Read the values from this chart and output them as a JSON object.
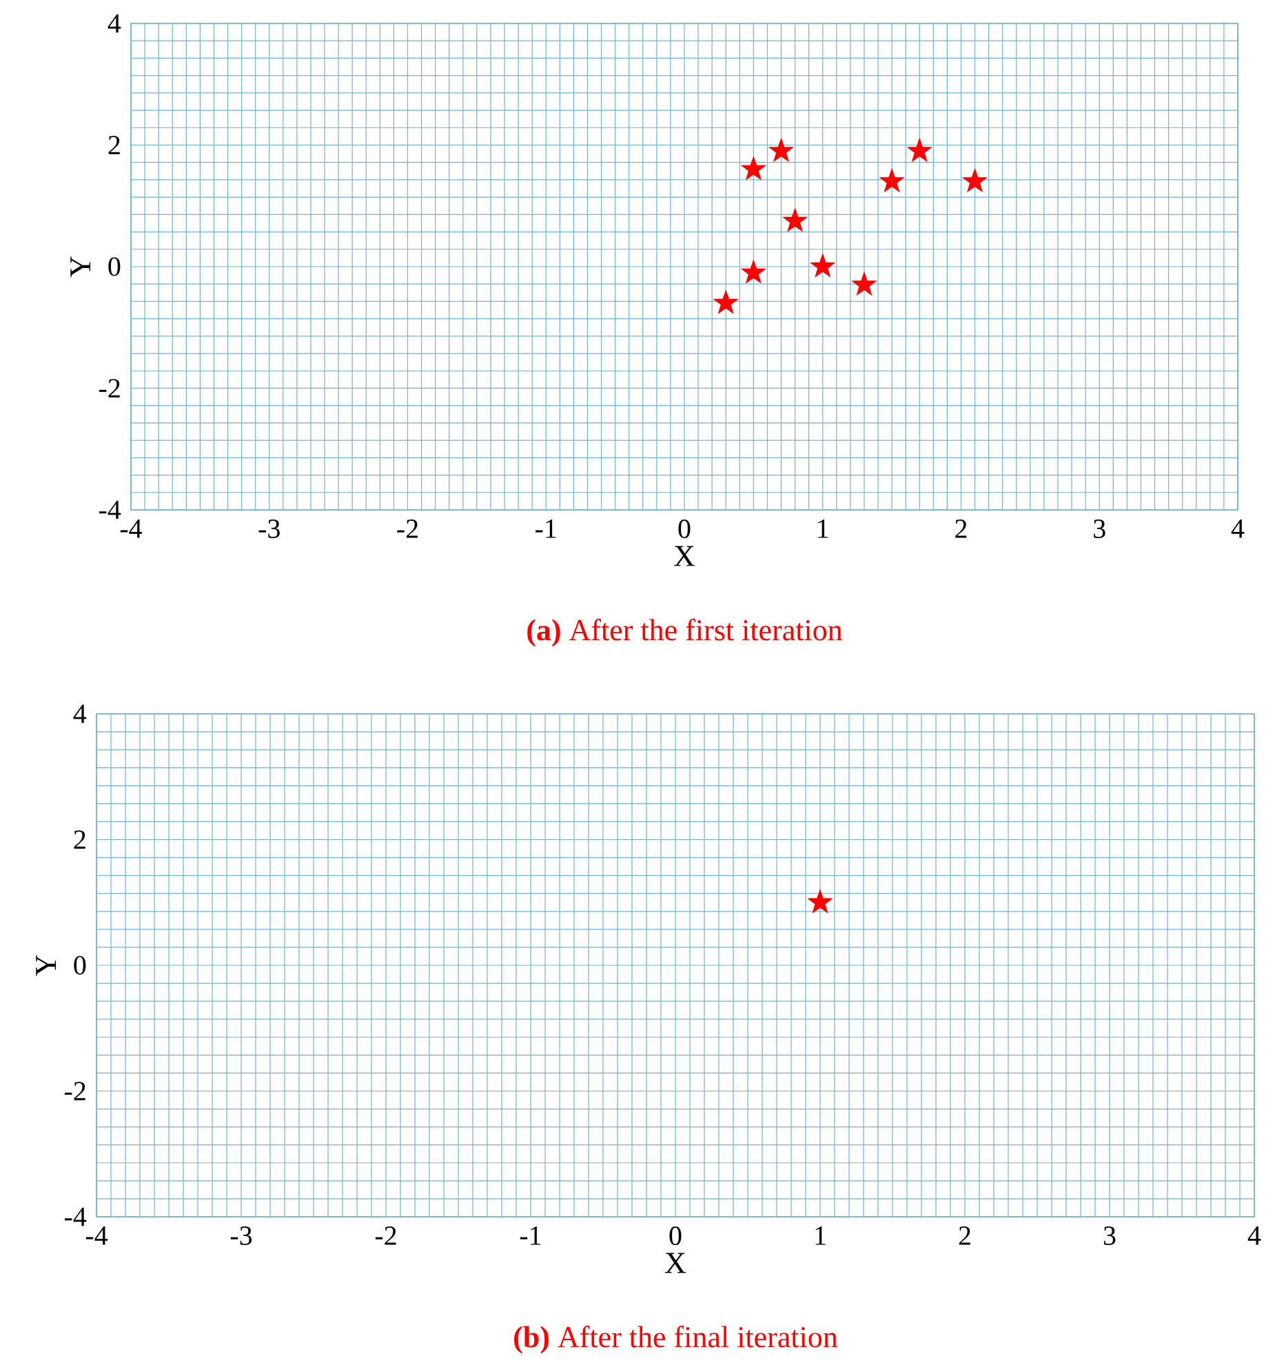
{
  "chart_data": [
    {
      "type": "scatter",
      "title": "**(a)** After the first iteration",
      "xlabel": "X",
      "ylabel": "Y",
      "x": [
        0.3,
        0.5,
        0.5,
        0.7,
        0.8,
        1.0,
        1.3,
        1.5,
        1.7,
        2.1
      ],
      "values": [
        -0.6,
        -0.1,
        1.6,
        1.9,
        0.75,
        0.0,
        -0.3,
        1.4,
        1.9,
        1.4
      ],
      "color": "#ff0000",
      "marker": "star",
      "xlim": [
        -4,
        4
      ],
      "ylim": [
        -4,
        4
      ],
      "xticks": [
        -4,
        -3,
        -2,
        -1,
        0,
        1,
        2,
        3,
        4
      ],
      "yticks": [
        -4,
        -2,
        0,
        2,
        4
      ],
      "grid": true
    },
    {
      "type": "scatter",
      "title": "**(b)** After the final iteration",
      "xlabel": "X",
      "ylabel": "Y",
      "x": [
        1.0
      ],
      "values": [
        1.0
      ],
      "color": "#ff0000",
      "marker": "star",
      "xlim": [
        -4,
        4
      ],
      "ylim": [
        -4,
        4
      ],
      "xticks": [
        -4,
        -3,
        -2,
        -1,
        0,
        1,
        2,
        3,
        4
      ],
      "yticks": [
        -4,
        -2,
        0,
        2,
        4
      ],
      "grid": true
    }
  ]
}
